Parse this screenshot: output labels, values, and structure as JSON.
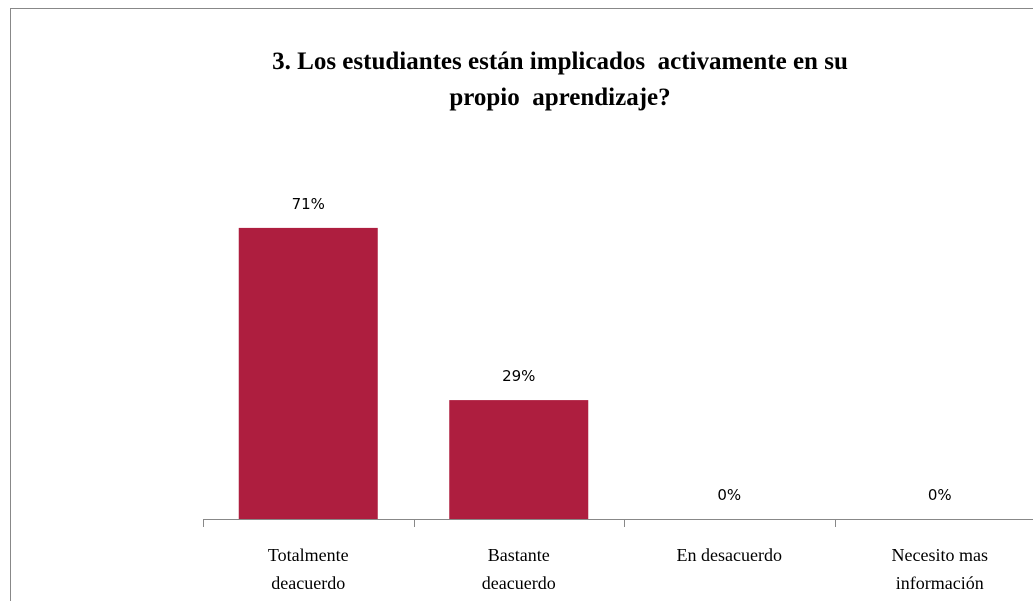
{
  "chart_data": {
    "type": "bar",
    "title": "3. Los estudiantes están implicados  activamente en su\npropio  aprendizaje?",
    "categories": [
      "Totalmente\ndeacuerdo",
      "Bastante\ndeacuerdo",
      "En desacuerdo",
      "Necesito mas\ninformación"
    ],
    "values": [
      71,
      29,
      0,
      0
    ],
    "value_labels": [
      "71%",
      "29%",
      "0%",
      "0%"
    ],
    "color": "#ae1e3f"
  }
}
